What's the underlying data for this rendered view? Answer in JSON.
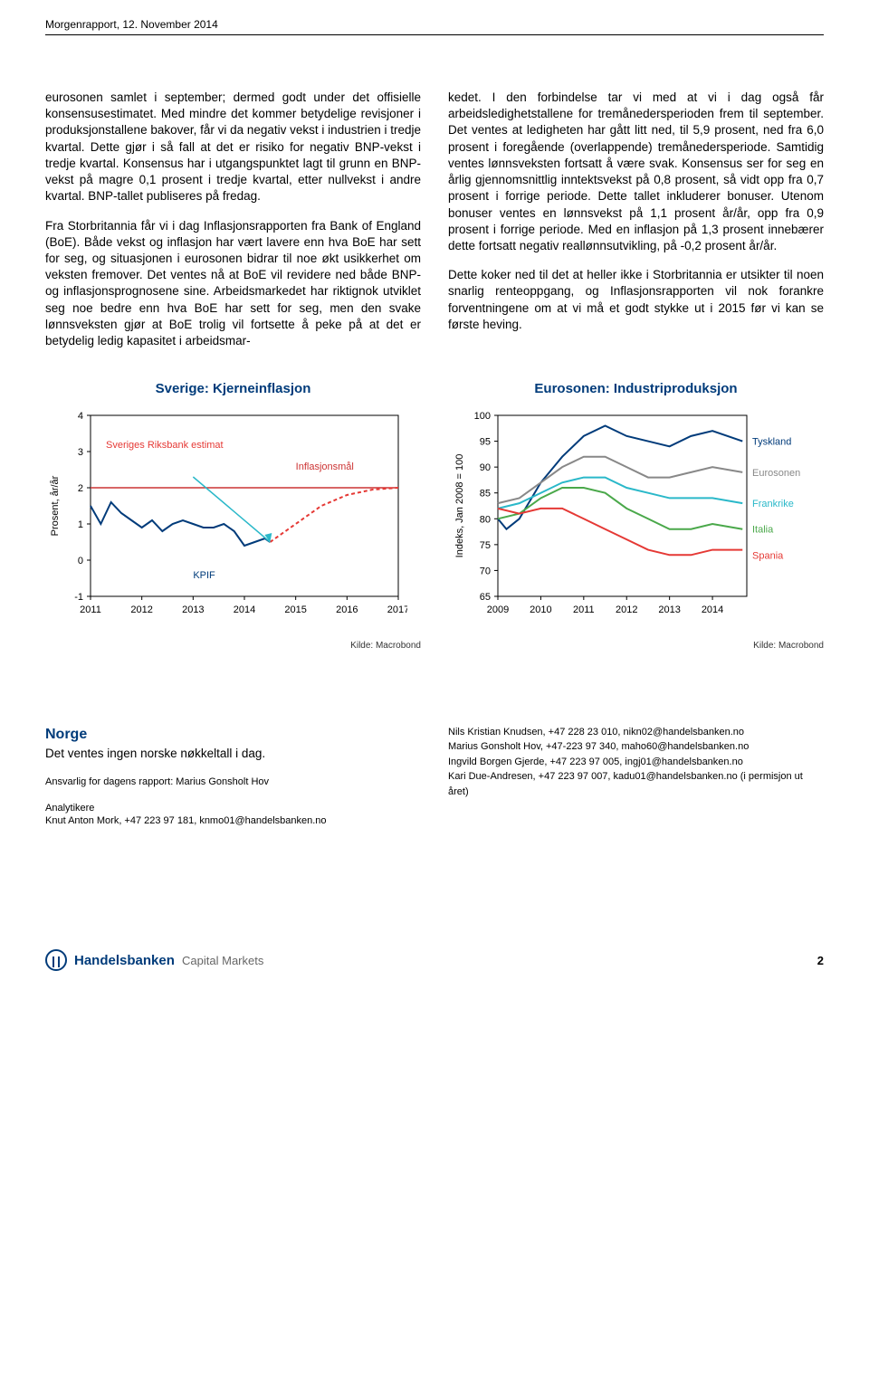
{
  "header": "Morgenrapport, 12. November 2014",
  "col1": {
    "p1": "eurosonen samlet i september; dermed godt under det offisielle konsensusestimatet. Med mindre det kommer betydelige revisjoner i produksjonstallene bakover, får vi da negativ vekst i industrien i tredje kvartal. Dette gjør i så fall at det er risiko for negativ BNP-vekst i tredje kvartal. Konsensus har i utgangspunktet lagt til grunn en BNP-vekst på magre 0,1 prosent i tredje kvartal, etter nullvekst i andre kvartal. BNP-tallet publiseres på fredag.",
    "p2": "Fra Storbritannia får vi i dag Inflasjonsrapporten fra Bank of England (BoE). Både vekst og inflasjon har vært lavere enn hva BoE har sett for seg, og situasjonen i eurosonen bidrar til noe økt usikkerhet om veksten fremover. Det ventes nå at BoE vil revidere ned både BNP- og inflasjonsprognosene sine. Arbeidsmarkedet har riktignok utviklet seg noe bedre enn hva BoE har sett for seg, men den svake lønnsveksten gjør at BoE trolig vil fortsette å peke på at det er betydelig ledig kapasitet i arbeidsmar-"
  },
  "col2": {
    "p1": "kedet. I den forbindelse tar vi med at vi i dag også får arbeidsledighetstallene for tremånedersperioden frem til september. Det ventes at ledigheten har gått litt ned, til 5,9 prosent, ned fra 6,0 prosent i foregående (overlappende) tremånedersperiode. Samtidig ventes lønnsveksten fortsatt å være svak. Konsensus ser for seg en årlig gjennomsnittlig inntektsvekst på 0,8 prosent, så vidt opp fra 0,7 prosent i forrige periode. Dette tallet inkluderer bonuser. Utenom bonuser ventes en lønnsvekst på 1,1 prosent år/år, opp fra 0,9 prosent i forrige periode. Med en inflasjon på 1,3 prosent innebærer dette fortsatt negativ reallønnsutvikling, på -0,2 prosent år/år.",
    "p2": "Dette koker ned til det at heller ikke i Storbritannia er utsikter til noen snarlig renteoppgang, og Inflasjonsrapporten vil nok forankre forventningene om at vi må et godt stykke ut i 2015 før vi kan se første heving."
  },
  "chart1": {
    "title": "Sverige: Kjerneinflasjon",
    "type": "line",
    "ylabel": "Prosent, år/år",
    "ylim": [
      -1,
      4
    ],
    "ytick_step": 1,
    "x_ticks": [
      "2011",
      "2012",
      "2013",
      "2014",
      "2015",
      "2016",
      "2017"
    ],
    "series": {
      "riksbank": {
        "label": "Sveriges Riksbank estimat",
        "color": "#e53935",
        "dash": "4,3",
        "points": [
          [
            2014.5,
            0.5
          ],
          [
            2015,
            1.0
          ],
          [
            2015.5,
            1.5
          ],
          [
            2016,
            1.8
          ],
          [
            2016.5,
            1.95
          ],
          [
            2017,
            2.0
          ]
        ]
      },
      "kpif": {
        "label": "KPIF",
        "color": "#003b7a",
        "points": [
          [
            2011,
            1.5
          ],
          [
            2011.2,
            1.0
          ],
          [
            2011.4,
            1.6
          ],
          [
            2011.6,
            1.3
          ],
          [
            2011.8,
            1.1
          ],
          [
            2012,
            0.9
          ],
          [
            2012.2,
            1.1
          ],
          [
            2012.4,
            0.8
          ],
          [
            2012.6,
            1.0
          ],
          [
            2012.8,
            1.1
          ],
          [
            2013,
            1.0
          ],
          [
            2013.2,
            0.9
          ],
          [
            2013.4,
            0.9
          ],
          [
            2013.6,
            1.0
          ],
          [
            2013.8,
            0.8
          ],
          [
            2014,
            0.4
          ],
          [
            2014.2,
            0.5
          ],
          [
            2014.4,
            0.6
          ],
          [
            2014.5,
            0.5
          ]
        ]
      },
      "target": {
        "label": "Inflasjonsmål",
        "color": "#cc3333",
        "value": 2.0
      }
    },
    "arrow": {
      "color": "#2ab8c9",
      "from": [
        2013.0,
        2.3
      ],
      "to": [
        2014.5,
        0.5
      ]
    },
    "background_color": "#ffffff",
    "grid_color": "#000000",
    "source": "Kilde: Macrobond"
  },
  "chart2": {
    "title": "Eurosonen: Industriproduksjon",
    "type": "line",
    "ylabel": "Indeks, Jan 2008 = 100",
    "ylim": [
      65,
      100
    ],
    "ytick_step": 5,
    "x_ticks": [
      "2009",
      "2010",
      "2011",
      "2012",
      "2013",
      "2014"
    ],
    "series": {
      "tyskland": {
        "label": "Tyskland",
        "color": "#003b7a",
        "points": [
          [
            2009,
            80
          ],
          [
            2009.2,
            78
          ],
          [
            2009.5,
            80
          ],
          [
            2010,
            87
          ],
          [
            2010.5,
            92
          ],
          [
            2011,
            96
          ],
          [
            2011.5,
            98
          ],
          [
            2012,
            96
          ],
          [
            2012.5,
            95
          ],
          [
            2013,
            94
          ],
          [
            2013.5,
            96
          ],
          [
            2014,
            97
          ],
          [
            2014.7,
            95
          ]
        ]
      },
      "eurosonen": {
        "label": "Eurosonen",
        "color": "#888888",
        "points": [
          [
            2009,
            83
          ],
          [
            2009.5,
            84
          ],
          [
            2010,
            87
          ],
          [
            2010.5,
            90
          ],
          [
            2011,
            92
          ],
          [
            2011.5,
            92
          ],
          [
            2012,
            90
          ],
          [
            2012.5,
            88
          ],
          [
            2013,
            88
          ],
          [
            2013.5,
            89
          ],
          [
            2014,
            90
          ],
          [
            2014.7,
            89
          ]
        ]
      },
      "frankrike": {
        "label": "Frankrike",
        "color": "#2ab8c9",
        "points": [
          [
            2009,
            82
          ],
          [
            2009.5,
            83
          ],
          [
            2010,
            85
          ],
          [
            2010.5,
            87
          ],
          [
            2011,
            88
          ],
          [
            2011.5,
            88
          ],
          [
            2012,
            86
          ],
          [
            2012.5,
            85
          ],
          [
            2013,
            84
          ],
          [
            2013.5,
            84
          ],
          [
            2014,
            84
          ],
          [
            2014.7,
            83
          ]
        ]
      },
      "italia": {
        "label": "Italia",
        "color": "#4aa84a",
        "points": [
          [
            2009,
            80
          ],
          [
            2009.5,
            81
          ],
          [
            2010,
            84
          ],
          [
            2010.5,
            86
          ],
          [
            2011,
            86
          ],
          [
            2011.5,
            85
          ],
          [
            2012,
            82
          ],
          [
            2012.5,
            80
          ],
          [
            2013,
            78
          ],
          [
            2013.5,
            78
          ],
          [
            2014,
            79
          ],
          [
            2014.7,
            78
          ]
        ]
      },
      "spania": {
        "label": "Spania",
        "color": "#e53935",
        "points": [
          [
            2009,
            82
          ],
          [
            2009.5,
            81
          ],
          [
            2010,
            82
          ],
          [
            2010.5,
            82
          ],
          [
            2011,
            80
          ],
          [
            2011.5,
            78
          ],
          [
            2012,
            76
          ],
          [
            2012.5,
            74
          ],
          [
            2013,
            73
          ],
          [
            2013.5,
            73
          ],
          [
            2014,
            74
          ],
          [
            2014.7,
            74
          ]
        ]
      }
    },
    "background_color": "#ffffff",
    "source": "Kilde: Macrobond"
  },
  "norge": {
    "title": "Norge",
    "sub": "Det ventes ingen norske nøkkeltall i dag.",
    "ansvarlig": "Ansvarlig for dagens rapport: Marius Gonsholt Hov",
    "anal_title": "Analytikere",
    "anal1": "Knut Anton Mork, +47 223 97 181, knmo01@handelsbanken.no",
    "contacts": [
      "Nils Kristian Knudsen, +47 228 23 010, nikn02@handelsbanken.no",
      "Marius Gonsholt Hov, +47-223 97 340, maho60@handelsbanken.no",
      "Ingvild Borgen Gjerde, +47 223 97 005, ingj01@handelsbanken.no",
      "Kari Due-Andresen, +47 223 97 007, kadu01@handelsbanken.no (i permisjon ut året)"
    ]
  },
  "footer": {
    "logo_main": "Handelsbanken",
    "logo_sub": "Capital Markets",
    "page": "2"
  }
}
